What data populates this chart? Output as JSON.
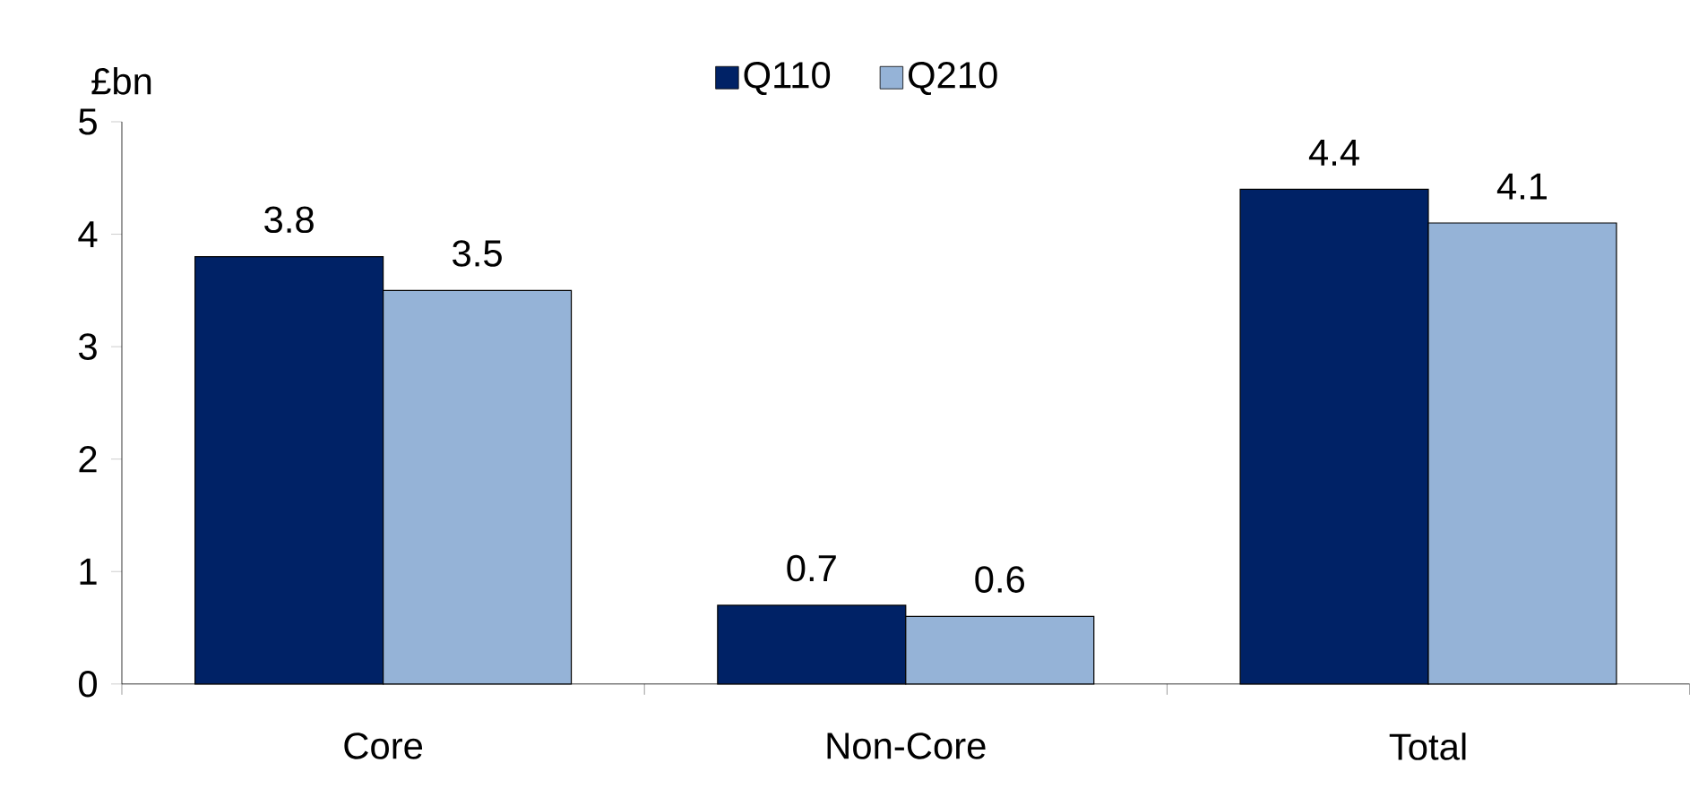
{
  "chart_data": {
    "type": "bar",
    "ylabel": "£bn",
    "categories": [
      "Core",
      "Non-Core",
      "Total"
    ],
    "series": [
      {
        "name": "Q110",
        "color": "#002266",
        "values": [
          3.8,
          0.7,
          4.4
        ]
      },
      {
        "name": "Q210",
        "color": "#95b3d7",
        "values": [
          3.5,
          0.6,
          4.1
        ]
      }
    ],
    "ylim": [
      0,
      5
    ],
    "yticks": [
      0,
      1,
      2,
      3,
      4,
      5
    ],
    "grid": false,
    "legend": "top",
    "data_labels": true
  }
}
